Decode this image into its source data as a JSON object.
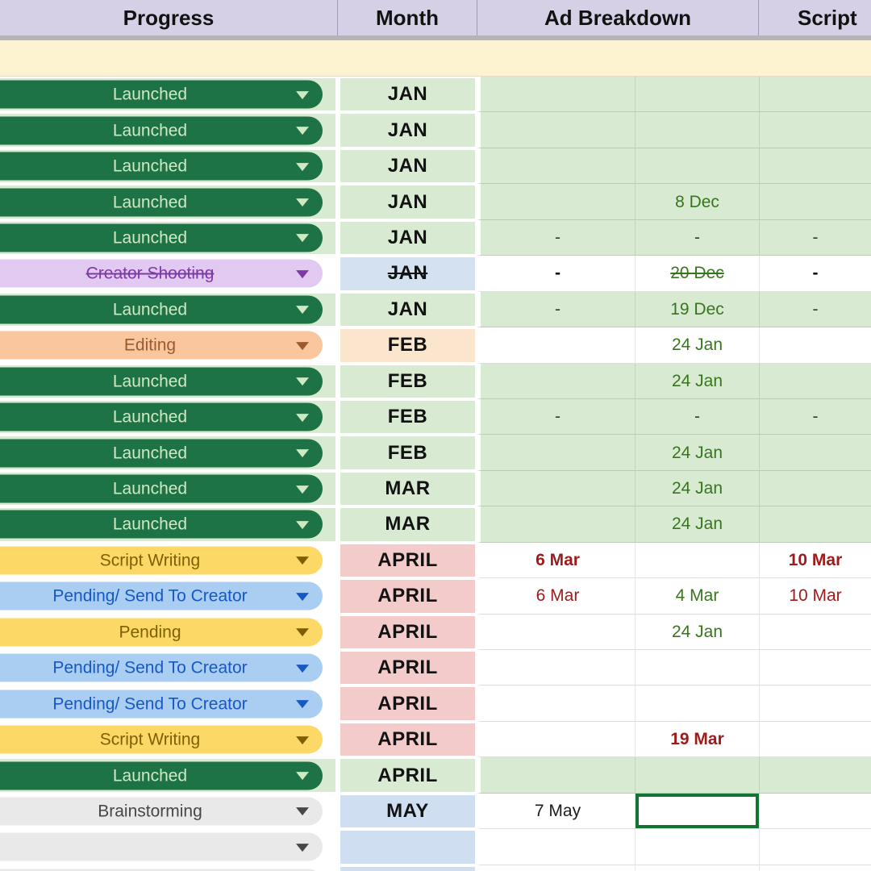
{
  "header": {
    "progress": "Progress",
    "month": "Month",
    "ad_breakdown": "Ad Breakdown",
    "script": "Script"
  },
  "banner": {
    "text": ""
  },
  "colors": {
    "header_bg": "#d5d0e6",
    "freeze_bar": "#b5b3ba",
    "banner_bg": "#fdf3d1",
    "green_cell": "#d9ead3",
    "peach_cell": "#fce5cd",
    "pink_cell": "#f3cbcb",
    "blue_cell": "#d3e1f1",
    "lightblue_cell": "#cfdff1",
    "chip_launched_bg": "#1d7346",
    "chip_launched_text": "#cfe9c4",
    "chip_creator_bg": "#e2c9f1",
    "chip_creator_text": "#7c3aa4",
    "chip_editing_bg": "#f9c69e",
    "chip_editing_text": "#9a5b2e",
    "chip_yellow_bg": "#fcd966",
    "chip_yellow_text": "#7f6000",
    "chip_blue_bg": "#a9cef2",
    "chip_blue_text": "#1758c4",
    "chip_gray_bg": "#e9e9e9",
    "chip_gray_text": "#474747",
    "date_green": "#38761d",
    "date_red": "#9c1b1b",
    "selection_border": "#137333"
  },
  "selection": {
    "row_index": 20,
    "column": "ad_breakdown_2"
  },
  "rows": [
    {
      "chip": "launched",
      "progress": "Launched",
      "month": "JAN",
      "month_bg": "green",
      "row_bg": "green",
      "strike_progress": false,
      "strike_month": false,
      "cells": [
        {
          "text": "",
          "style": "none"
        },
        {
          "text": "",
          "style": "none"
        },
        {
          "text": "",
          "style": "none"
        }
      ]
    },
    {
      "chip": "launched",
      "progress": "Launched",
      "month": "JAN",
      "month_bg": "green",
      "row_bg": "green",
      "strike_progress": false,
      "strike_month": false,
      "cells": [
        {
          "text": "",
          "style": "none"
        },
        {
          "text": "",
          "style": "none"
        },
        {
          "text": "",
          "style": "none"
        }
      ]
    },
    {
      "chip": "launched",
      "progress": "Launched",
      "month": "JAN",
      "month_bg": "green",
      "row_bg": "green",
      "strike_progress": false,
      "strike_month": false,
      "cells": [
        {
          "text": "",
          "style": "none"
        },
        {
          "text": "",
          "style": "none"
        },
        {
          "text": "",
          "style": "none"
        }
      ]
    },
    {
      "chip": "launched",
      "progress": "Launched",
      "month": "JAN",
      "month_bg": "green",
      "row_bg": "green",
      "strike_progress": false,
      "strike_month": false,
      "cells": [
        {
          "text": "",
          "style": "none"
        },
        {
          "text": "8 Dec",
          "style": "green"
        },
        {
          "text": "",
          "style": "none"
        }
      ]
    },
    {
      "chip": "launched",
      "progress": "Launched",
      "month": "JAN",
      "month_bg": "green",
      "row_bg": "green",
      "strike_progress": false,
      "strike_month": false,
      "cells": [
        {
          "text": "-",
          "style": "dash"
        },
        {
          "text": "-",
          "style": "dash"
        },
        {
          "text": "-",
          "style": "dash"
        }
      ]
    },
    {
      "chip": "creator",
      "progress": "Creator Shooting",
      "month": "JAN",
      "month_bg": "blue",
      "row_bg": "white",
      "strike_progress": true,
      "strike_month": true,
      "cells": [
        {
          "text": "-",
          "style": "dash-bold"
        },
        {
          "text": "20 Dec",
          "style": "green-strike"
        },
        {
          "text": "-",
          "style": "dash-bold"
        }
      ]
    },
    {
      "chip": "launched",
      "progress": "Launched",
      "month": "JAN",
      "month_bg": "green",
      "row_bg": "green",
      "strike_progress": false,
      "strike_month": false,
      "cells": [
        {
          "text": "-",
          "style": "dash"
        },
        {
          "text": "19 Dec",
          "style": "green"
        },
        {
          "text": "-",
          "style": "dash"
        }
      ]
    },
    {
      "chip": "editing",
      "progress": "Editing",
      "month": "FEB",
      "month_bg": "peach",
      "row_bg": "white",
      "strike_progress": false,
      "strike_month": false,
      "cells": [
        {
          "text": "",
          "style": "none"
        },
        {
          "text": "24 Jan",
          "style": "green"
        },
        {
          "text": "",
          "style": "none"
        }
      ]
    },
    {
      "chip": "launched",
      "progress": "Launched",
      "month": "FEB",
      "month_bg": "green",
      "row_bg": "green",
      "strike_progress": false,
      "strike_month": false,
      "cells": [
        {
          "text": "",
          "style": "none"
        },
        {
          "text": "24 Jan",
          "style": "green"
        },
        {
          "text": "",
          "style": "none"
        }
      ]
    },
    {
      "chip": "launched",
      "progress": "Launched",
      "month": "FEB",
      "month_bg": "green",
      "row_bg": "green",
      "strike_progress": false,
      "strike_month": false,
      "cells": [
        {
          "text": "-",
          "style": "dash"
        },
        {
          "text": "-",
          "style": "dash"
        },
        {
          "text": "-",
          "style": "dash"
        }
      ]
    },
    {
      "chip": "launched",
      "progress": "Launched",
      "month": "FEB",
      "month_bg": "green",
      "row_bg": "green",
      "strike_progress": false,
      "strike_month": false,
      "cells": [
        {
          "text": "",
          "style": "none"
        },
        {
          "text": "24 Jan",
          "style": "green"
        },
        {
          "text": "",
          "style": "none"
        }
      ]
    },
    {
      "chip": "launched",
      "progress": "Launched",
      "month": "MAR",
      "month_bg": "green",
      "row_bg": "green",
      "strike_progress": false,
      "strike_month": false,
      "cells": [
        {
          "text": "",
          "style": "none"
        },
        {
          "text": "24 Jan",
          "style": "green"
        },
        {
          "text": "",
          "style": "none"
        }
      ]
    },
    {
      "chip": "launched",
      "progress": "Launched",
      "month": "MAR",
      "month_bg": "green",
      "row_bg": "green",
      "strike_progress": false,
      "strike_month": false,
      "cells": [
        {
          "text": "",
          "style": "none"
        },
        {
          "text": "24 Jan",
          "style": "green"
        },
        {
          "text": "",
          "style": "none"
        }
      ]
    },
    {
      "chip": "script",
      "progress": "Script Writing",
      "month": "APRIL",
      "month_bg": "pink",
      "row_bg": "white",
      "strike_progress": false,
      "strike_month": false,
      "cells": [
        {
          "text": "6 Mar",
          "style": "red-bold"
        },
        {
          "text": "",
          "style": "none"
        },
        {
          "text": "10 Mar",
          "style": "red-bold"
        }
      ]
    },
    {
      "chip": "pending_creator",
      "progress": "Pending/ Send To Creator",
      "month": "APRIL",
      "month_bg": "pink",
      "row_bg": "white",
      "strike_progress": false,
      "strike_month": false,
      "cells": [
        {
          "text": "6 Mar",
          "style": "red"
        },
        {
          "text": "4 Mar",
          "style": "green"
        },
        {
          "text": "10 Mar",
          "style": "red"
        }
      ]
    },
    {
      "chip": "pending",
      "progress": "Pending",
      "month": "APRIL",
      "month_bg": "pink",
      "row_bg": "white",
      "strike_progress": false,
      "strike_month": false,
      "cells": [
        {
          "text": "",
          "style": "none"
        },
        {
          "text": "24 Jan",
          "style": "green"
        },
        {
          "text": "",
          "style": "none"
        }
      ]
    },
    {
      "chip": "pending_creator",
      "progress": "Pending/ Send To Creator",
      "month": "APRIL",
      "month_bg": "pink",
      "row_bg": "white",
      "strike_progress": false,
      "strike_month": false,
      "cells": [
        {
          "text": "",
          "style": "none"
        },
        {
          "text": "",
          "style": "none"
        },
        {
          "text": "",
          "style": "none"
        }
      ]
    },
    {
      "chip": "pending_creator",
      "progress": "Pending/ Send To Creator",
      "month": "APRIL",
      "month_bg": "pink",
      "row_bg": "white",
      "strike_progress": false,
      "strike_month": false,
      "cells": [
        {
          "text": "",
          "style": "none"
        },
        {
          "text": "",
          "style": "none"
        },
        {
          "text": "",
          "style": "none"
        }
      ]
    },
    {
      "chip": "script",
      "progress": "Script Writing",
      "month": "APRIL",
      "month_bg": "pink",
      "row_bg": "white",
      "strike_progress": false,
      "strike_month": false,
      "cells": [
        {
          "text": "",
          "style": "none"
        },
        {
          "text": "19 Mar",
          "style": "red-bold"
        },
        {
          "text": "",
          "style": "none"
        }
      ]
    },
    {
      "chip": "launched",
      "progress": "Launched",
      "month": "APRIL",
      "month_bg": "green",
      "row_bg": "green",
      "strike_progress": false,
      "strike_month": false,
      "cells": [
        {
          "text": "",
          "style": "none"
        },
        {
          "text": "",
          "style": "none"
        },
        {
          "text": "",
          "style": "none"
        }
      ]
    },
    {
      "chip": "brainstorm",
      "progress": "Brainstorming",
      "month": "MAY",
      "month_bg": "lightblue",
      "row_bg": "white",
      "strike_progress": false,
      "strike_month": false,
      "cells": [
        {
          "text": "7 May",
          "style": "black"
        },
        {
          "text": "",
          "style": "none",
          "selected": true
        },
        {
          "text": "",
          "style": "none"
        }
      ]
    },
    {
      "chip": "blank",
      "progress": "",
      "month": "",
      "month_bg": "lightblue",
      "row_bg": "white",
      "strike_progress": false,
      "strike_month": false,
      "cells": [
        {
          "text": "",
          "style": "none"
        },
        {
          "text": "",
          "style": "none"
        },
        {
          "text": "",
          "style": "none"
        }
      ]
    },
    {
      "chip": "blank",
      "progress": "",
      "month": "",
      "month_bg": "lightblue",
      "row_bg": "white",
      "strike_progress": false,
      "strike_month": false,
      "cells": [
        {
          "text": "",
          "style": "none"
        },
        {
          "text": "",
          "style": "none"
        },
        {
          "text": "",
          "style": "none"
        }
      ]
    }
  ]
}
